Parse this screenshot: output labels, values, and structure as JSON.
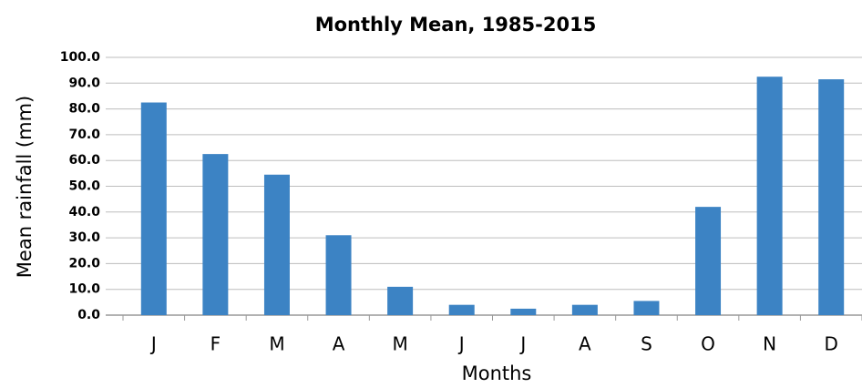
{
  "chart_data": {
    "type": "bar",
    "title": "Monthly Mean, 1985-2015",
    "x_label": "Months",
    "y_label": "Mean rainfall (mm)",
    "categories": [
      "J",
      "F",
      "M",
      "A",
      "M",
      "J",
      "J",
      "A",
      "S",
      "O",
      "N",
      "D"
    ],
    "values": [
      82.5,
      62.5,
      54.5,
      31,
      11,
      4,
      2.5,
      4,
      5.5,
      42,
      92.5,
      91.5
    ],
    "color": "#3c83c4",
    "ylim": [
      0,
      100
    ],
    "yticks": [
      {
        "value": 0,
        "label": "0.0"
      },
      {
        "value": 10,
        "label": "10.0"
      },
      {
        "value": 20,
        "label": "20.0"
      },
      {
        "value": 30,
        "label": "30.0"
      },
      {
        "value": 40,
        "label": "40.0"
      },
      {
        "value": 50,
        "label": "50.0"
      },
      {
        "value": 60,
        "label": "60.0"
      },
      {
        "value": 70,
        "label": "70.0"
      },
      {
        "value": 80,
        "label": "80.0"
      },
      {
        "value": 90,
        "label": "90.0"
      },
      {
        "value": 100,
        "label": "100.0"
      }
    ],
    "grid": true
  }
}
